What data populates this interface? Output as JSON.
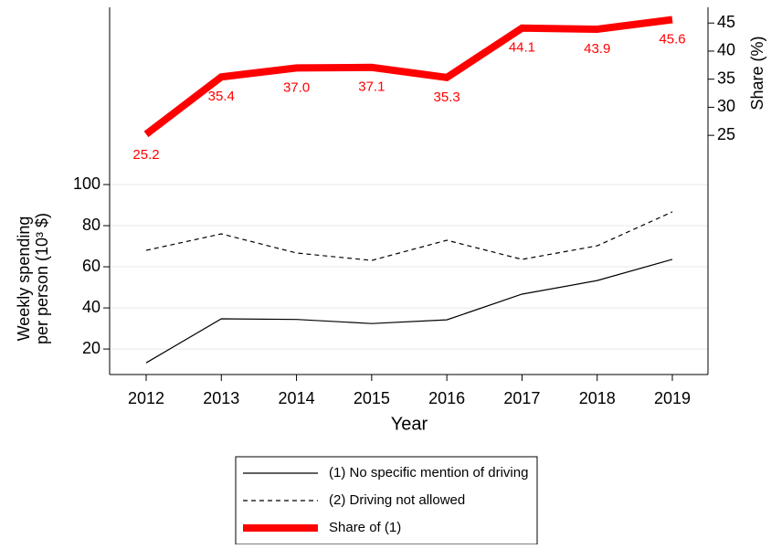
{
  "chart_data": {
    "type": "line",
    "categories": [
      "2012",
      "2013",
      "2014",
      "2015",
      "2016",
      "2017",
      "2018",
      "2019"
    ],
    "xlabel": "Year",
    "ylabel": [
      "Weekly spending",
      "per person (10³ $)"
    ],
    "y2label": "Share (%)",
    "ylim": [
      7.6,
      186.2
    ],
    "yticks": [
      20,
      40,
      60,
      80,
      100
    ],
    "y2lim": [
      -17.6,
      47.8
    ],
    "y2ticks": [
      25,
      30,
      35,
      40,
      45
    ],
    "grid": true,
    "series": [
      {
        "name": "(1) No specific mention of driving",
        "color": "#000000",
        "line_style": "solid",
        "line_width": 1.2,
        "values": [
          13.3,
          34.7,
          34.4,
          32.4,
          34.2,
          46.7,
          53.3,
          63.6
        ]
      },
      {
        "name": "(2) Driving not allowed",
        "color": "#000000",
        "line_style": "dashed",
        "line_width": 1.2,
        "values": [
          68,
          76,
          66.7,
          63.1,
          72.9,
          63.6,
          70.2,
          86.7
        ]
      },
      {
        "name": "Share of (1)",
        "color": "#ff0000",
        "line_style": "solid",
        "line_width": 8,
        "axis": "y2",
        "values": [
          25.2,
          35.4,
          37.0,
          37.1,
          35.3,
          44.1,
          43.9,
          45.6
        ],
        "value_labels": [
          "25.2",
          "35.4",
          "37.0",
          "37.1",
          "35.3",
          "44.1",
          "43.9",
          "45.6"
        ]
      }
    ],
    "legend": "bottom"
  }
}
